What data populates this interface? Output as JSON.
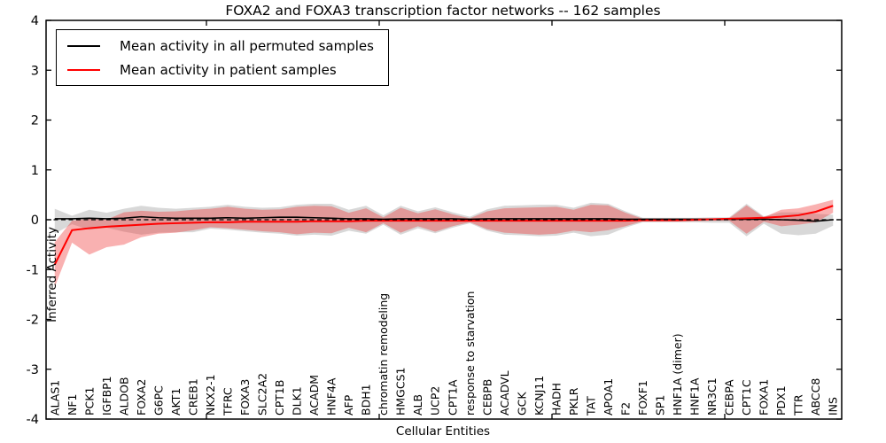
{
  "title": "FOXA2 and FOXA3 transcription factor networks -- 162 samples",
  "legend": {
    "items": [
      {
        "label": "Mean activity in all permuted samples",
        "color": "#000000"
      },
      {
        "label": "Mean activity in patient samples",
        "color": "#ff0000"
      }
    ]
  },
  "axes": {
    "x_label": "Cellular Entities",
    "y_label": "Inferred Activity",
    "y_ticks": [
      "-4",
      "-3",
      "-2",
      "-1",
      "0",
      "1",
      "2",
      "3",
      "4"
    ],
    "y_min": -4,
    "y_max": 4
  },
  "colors": {
    "frame": "#000000",
    "permuted_line": "#000000",
    "patient_line": "#ff0000",
    "permuted_band": "#999999",
    "patient_band": "#ee3333",
    "reference_line": "#000000"
  },
  "chart_data": {
    "type": "line",
    "title": "FOXA2 and FOXA3 transcription factor networks -- 162 samples",
    "xlabel": "Cellular Entities",
    "ylabel": "Inferred Activity",
    "ylim": [
      -4,
      4
    ],
    "grid": false,
    "legend_position": "upper left",
    "categories": [
      "ALAS1",
      "NF1",
      "PCK1",
      "IGFBP1",
      "ALDOB",
      "FOXA2",
      "G6PC",
      "AKT1",
      "CREB1",
      "NKX2-1",
      "TFRC",
      "FOXA3",
      "SLC2A2",
      "CPT1B",
      "DLK1",
      "ACADM",
      "HNF4A",
      "AFP",
      "BDH1",
      "chromatin remodeling",
      "HMGCS1",
      "ALB",
      "UCP2",
      "CPT1A",
      "response to starvation",
      "CEBPB",
      "ACADVL",
      "GCK",
      "KCNJ11",
      "HADH",
      "PKLR",
      "TAT",
      "APOA1",
      "F2",
      "FOXF1",
      "SP1",
      "HNF1A (dimer)",
      "HNF1A",
      "NR3C1",
      "CEBPA",
      "CPT1C",
      "FOXA1",
      "PDX1",
      "TTR",
      "ABCC8",
      "INS"
    ],
    "series": [
      {
        "name": "Mean activity in all permuted samples",
        "color": "#000000",
        "values": [
          0.02,
          0.02,
          0.03,
          0.02,
          0.03,
          0.06,
          0.04,
          0.03,
          0.03,
          0.03,
          0.04,
          0.03,
          0.04,
          0.05,
          0.05,
          0.04,
          0.03,
          0.02,
          0.02,
          0.01,
          0.02,
          0.02,
          0.02,
          0.02,
          0.01,
          0.02,
          0.02,
          0.02,
          0.02,
          0.02,
          0.02,
          0.02,
          0.02,
          0.01,
          0.01,
          0.01,
          0.01,
          0.01,
          0.01,
          0.01,
          0.01,
          0.01,
          0.0,
          -0.01,
          -0.03,
          0.0
        ]
      },
      {
        "name": "Mean activity in patient samples",
        "color": "#ff0000",
        "values": [
          -0.9,
          -0.21,
          -0.17,
          -0.14,
          -0.12,
          -0.1,
          -0.08,
          -0.07,
          -0.06,
          -0.05,
          -0.05,
          -0.04,
          -0.04,
          -0.04,
          -0.04,
          -0.03,
          -0.03,
          -0.03,
          -0.02,
          -0.02,
          -0.02,
          -0.02,
          -0.02,
          -0.02,
          -0.02,
          -0.02,
          -0.02,
          -0.02,
          -0.02,
          -0.02,
          -0.02,
          -0.02,
          -0.02,
          -0.02,
          -0.01,
          -0.01,
          -0.01,
          0.0,
          0.01,
          0.02,
          0.03,
          0.04,
          0.06,
          0.09,
          0.16,
          0.28
        ]
      }
    ],
    "bands": [
      {
        "name": "permuted-activity-range",
        "color": "#999999",
        "opacity": 0.38,
        "upper": [
          0.22,
          0.08,
          0.2,
          0.14,
          0.22,
          0.28,
          0.24,
          0.22,
          0.24,
          0.26,
          0.3,
          0.26,
          0.24,
          0.25,
          0.3,
          0.32,
          0.32,
          0.2,
          0.28,
          0.09,
          0.28,
          0.17,
          0.25,
          0.15,
          0.06,
          0.21,
          0.28,
          0.29,
          0.3,
          0.3,
          0.24,
          0.34,
          0.32,
          0.17,
          0.04,
          0.04,
          0.04,
          0.04,
          0.05,
          0.05,
          0.32,
          0.07,
          0.15,
          0.15,
          0.12,
          0.1
        ],
        "lower": [
          -0.28,
          -0.09,
          -0.2,
          -0.16,
          -0.24,
          -0.3,
          -0.26,
          -0.25,
          -0.25,
          -0.18,
          -0.2,
          -0.23,
          -0.26,
          -0.28,
          -0.32,
          -0.3,
          -0.32,
          -0.22,
          -0.28,
          -0.1,
          -0.3,
          -0.17,
          -0.27,
          -0.16,
          -0.07,
          -0.22,
          -0.3,
          -0.31,
          -0.33,
          -0.32,
          -0.26,
          -0.33,
          -0.3,
          -0.16,
          -0.05,
          -0.05,
          -0.05,
          -0.05,
          -0.06,
          -0.06,
          -0.33,
          -0.08,
          -0.28,
          -0.31,
          -0.28,
          -0.12
        ]
      },
      {
        "name": "patient-activity-range",
        "color": "#ee3333",
        "opacity": 0.38,
        "upper": [
          -0.45,
          -0.02,
          0.02,
          0.0,
          0.15,
          0.18,
          0.16,
          0.17,
          0.2,
          0.22,
          0.26,
          0.22,
          0.2,
          0.21,
          0.26,
          0.28,
          0.27,
          0.14,
          0.23,
          0.05,
          0.24,
          0.13,
          0.21,
          0.11,
          0.03,
          0.17,
          0.23,
          0.24,
          0.25,
          0.26,
          0.2,
          0.3,
          0.29,
          0.14,
          0.02,
          0.02,
          0.02,
          0.02,
          0.03,
          0.03,
          0.29,
          0.05,
          0.2,
          0.23,
          0.31,
          0.4
        ],
        "lower": [
          -1.35,
          -0.46,
          -0.7,
          -0.55,
          -0.5,
          -0.35,
          -0.28,
          -0.26,
          -0.21,
          -0.15,
          -0.17,
          -0.2,
          -0.23,
          -0.25,
          -0.29,
          -0.26,
          -0.27,
          -0.16,
          -0.25,
          -0.07,
          -0.26,
          -0.13,
          -0.24,
          -0.13,
          -0.05,
          -0.19,
          -0.26,
          -0.28,
          -0.3,
          -0.28,
          -0.22,
          -0.25,
          -0.21,
          -0.13,
          -0.03,
          -0.03,
          -0.03,
          -0.03,
          -0.02,
          -0.02,
          -0.28,
          -0.04,
          -0.13,
          -0.1,
          -0.05,
          0.14
        ]
      }
    ],
    "reference_line": {
      "y": 0,
      "style": "dashed",
      "color": "#000000"
    }
  }
}
